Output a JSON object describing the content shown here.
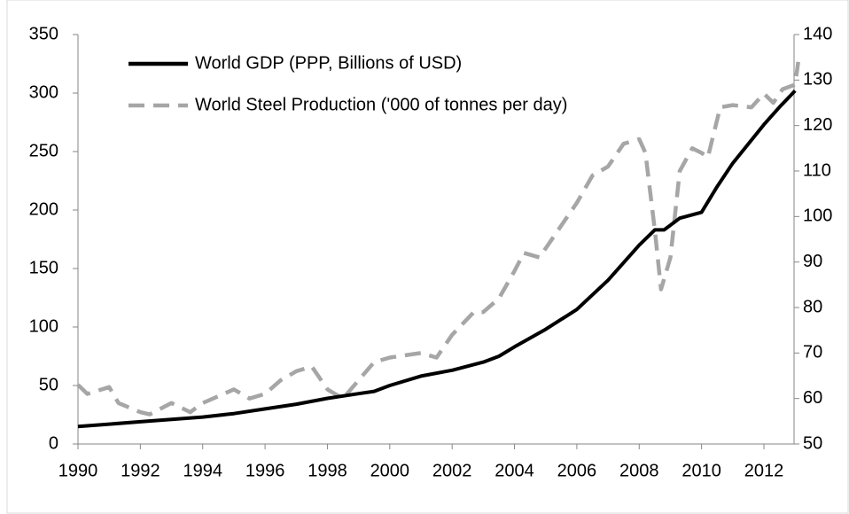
{
  "chart_data": {
    "type": "line",
    "x_ticks_note_free": null,
    "xlim": [
      1990,
      2013.2
    ],
    "xticks": [
      1990,
      1992,
      1994,
      1996,
      1998,
      2000,
      2002,
      2004,
      2006,
      2008,
      2010,
      2012
    ],
    "ylim": [
      0,
      350
    ],
    "yticks": [
      0,
      50,
      100,
      150,
      200,
      250,
      300,
      350
    ],
    "y2lim": [
      50,
      140
    ],
    "y2ticks": [
      50,
      60,
      70,
      80,
      90,
      100,
      110,
      120,
      130,
      140
    ],
    "series": [
      {
        "name": "World GDP (PPP, Billions of USD)",
        "color": "#000000",
        "dash": "solid",
        "axis": "y",
        "x": [
          1990,
          1991,
          1992,
          1993,
          1994,
          1995,
          1996,
          1997,
          1998,
          1999,
          1999.5,
          2000,
          2001,
          2002,
          2003,
          2003.5,
          2004,
          2005,
          2006,
          2007,
          2008,
          2008.5,
          2008.8,
          2009.3,
          2010,
          2010.5,
          2011,
          2012,
          2012.5,
          2013
        ],
        "values": [
          15,
          17,
          19,
          21,
          23,
          26,
          30,
          34,
          39,
          43,
          45,
          50,
          58,
          63,
          70,
          75,
          83,
          98,
          115,
          140,
          170,
          183,
          183,
          193,
          198,
          220,
          240,
          273,
          288,
          302
        ]
      },
      {
        "name": "World Steel Production  ('000 of tonnes per day)",
        "color": "#a6a6a6",
        "dash": "dashed",
        "axis": "y2",
        "x": [
          1990,
          1990.3,
          1991,
          1991.3,
          1992,
          1992.3,
          1993,
          1993.6,
          1994,
          1995,
          1995.5,
          1996,
          1996.5,
          1997,
          1997.5,
          1998,
          1998.5,
          1999,
          1999.5,
          2000,
          2000.5,
          2001,
          2001.5,
          2002,
          2002.7,
          2003,
          2003.5,
          2004,
          2004.3,
          2004.8,
          2005.5,
          2006,
          2006.5,
          2007,
          2007.5,
          2008,
          2008.2,
          2008.5,
          2008.7,
          2009,
          2009.3,
          2009.7,
          2010,
          2010.2,
          2010.6,
          2011,
          2011.6,
          2012,
          2012.3,
          2012.6,
          2013,
          2013.1
        ],
        "values": [
          63,
          61,
          62.5,
          59,
          57,
          56.5,
          59,
          57,
          59,
          62,
          60,
          61,
          64,
          66,
          67,
          62,
          60,
          64,
          68,
          69,
          69.5,
          70,
          69,
          74,
          79,
          79,
          82,
          88,
          92,
          91,
          98,
          103,
          109,
          111,
          116,
          117,
          114,
          97,
          84,
          91,
          110,
          115,
          114,
          113,
          124,
          124.5,
          124,
          127,
          125,
          128,
          129,
          134
        ]
      }
    ]
  }
}
